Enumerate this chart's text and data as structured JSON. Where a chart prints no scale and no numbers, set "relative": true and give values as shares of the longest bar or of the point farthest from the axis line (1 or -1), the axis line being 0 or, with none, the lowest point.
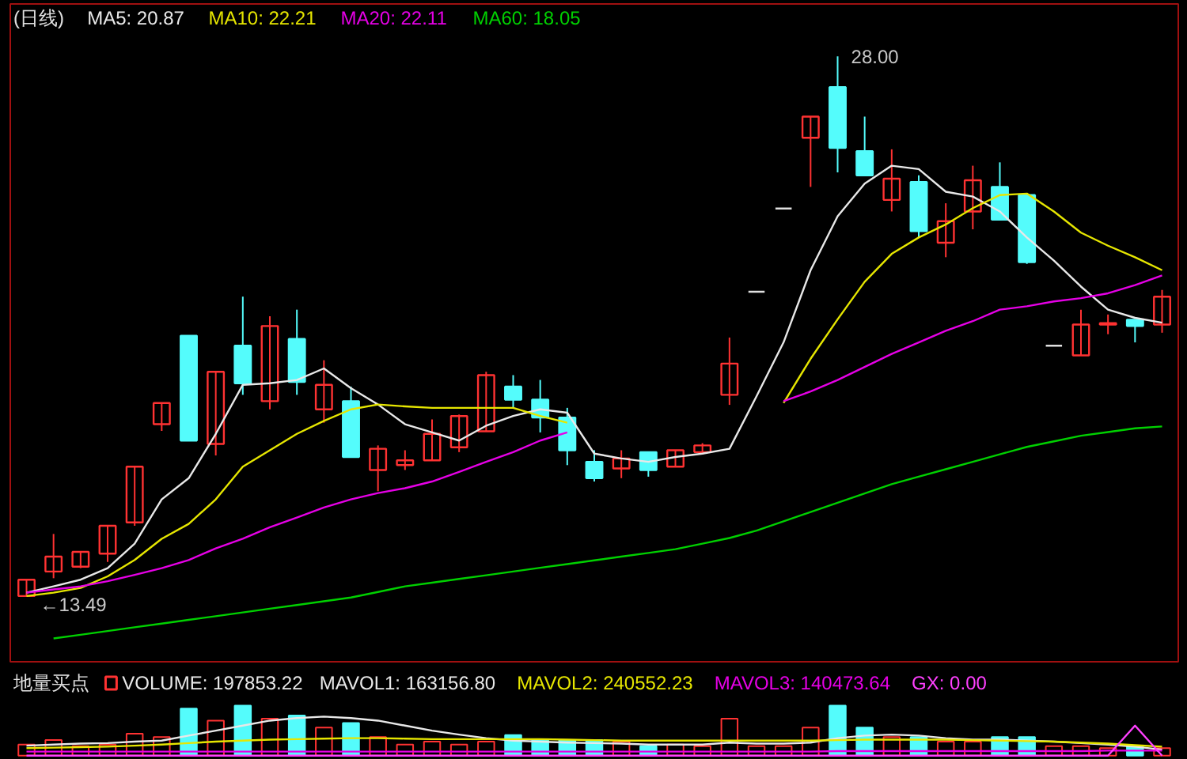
{
  "chart_data": [
    {
      "type": "candlestick",
      "title": "(日线)",
      "tick_labels": false,
      "categories": [
        null,
        null,
        null,
        null,
        null,
        null,
        null,
        null,
        null,
        null,
        null,
        null,
        null,
        null,
        null,
        null,
        null,
        null,
        null,
        null,
        null,
        null,
        null,
        null,
        null,
        null,
        null,
        null,
        null,
        null,
        null,
        null,
        null,
        null,
        null,
        null,
        null,
        null,
        null,
        null,
        null,
        null,
        null
      ],
      "ohlc": [
        [
          13.49,
          13.93,
          13.49,
          13.93
        ],
        [
          14.15,
          15.16,
          13.97,
          14.55
        ],
        [
          14.28,
          14.68,
          14.24,
          14.68
        ],
        [
          14.63,
          15.38,
          14.41,
          15.38
        ],
        [
          15.47,
          16.97,
          15.38,
          16.97
        ],
        [
          18.11,
          18.68,
          17.93,
          18.68
        ],
        [
          20.49,
          20.49,
          17.67,
          17.67
        ],
        [
          17.58,
          19.52,
          17.27,
          19.52
        ],
        [
          20.22,
          21.54,
          18.9,
          19.21
        ],
        [
          18.73,
          21.01,
          18.51,
          20.75
        ],
        [
          20.4,
          21.19,
          18.9,
          19.25
        ],
        [
          18.51,
          19.83,
          18.15,
          19.17
        ],
        [
          18.73,
          19.12,
          17.23,
          17.23
        ],
        [
          16.88,
          17.54,
          16.31,
          17.45
        ],
        [
          17.01,
          17.41,
          16.88,
          17.14
        ],
        [
          17.14,
          18.24,
          17.14,
          17.85
        ],
        [
          17.49,
          18.37,
          17.36,
          18.33
        ],
        [
          17.92,
          19.52,
          17.92,
          19.43
        ],
        [
          19.12,
          19.43,
          18.55,
          18.77
        ],
        [
          18.77,
          19.3,
          17.89,
          18.29
        ],
        [
          18.29,
          18.55,
          17.01,
          17.41
        ],
        [
          17.1,
          17.41,
          16.57,
          16.66
        ],
        [
          16.92,
          17.41,
          16.66,
          17.19
        ],
        [
          17.36,
          17.36,
          16.7,
          16.88
        ],
        [
          16.97,
          17.41,
          16.97,
          17.41
        ],
        [
          17.36,
          17.6,
          17.3,
          17.54
        ],
        [
          18.9,
          20.44,
          18.63,
          19.74
        ],
        [
          21.67,
          21.67,
          21.67,
          21.67
        ],
        [
          23.91,
          23.91,
          23.91,
          23.91
        ],
        [
          25.81,
          26.38,
          24.49,
          26.38
        ],
        [
          27.17,
          28.0,
          24.88,
          25.54
        ],
        [
          25.45,
          26.38,
          24.8,
          24.8
        ],
        [
          24.14,
          25.5,
          23.83,
          24.71
        ],
        [
          24.62,
          24.8,
          23.13,
          23.3
        ],
        [
          22.99,
          24.05,
          22.6,
          23.57
        ],
        [
          23.83,
          25.06,
          23.35,
          24.67
        ],
        [
          24.49,
          25.15,
          23.61,
          23.61
        ],
        [
          24.27,
          24.27,
          22.42,
          22.47
        ],
        [
          20.22,
          20.22,
          20.22,
          20.22
        ],
        [
          19.96,
          21.19,
          19.96,
          20.79
        ],
        [
          20.79,
          21.06,
          20.53,
          20.83
        ],
        [
          20.92,
          20.92,
          20.31,
          20.75
        ],
        [
          20.79,
          21.72,
          20.57,
          21.54
        ]
      ],
      "colors": [
        "#ff3232",
        "#ff3232",
        "#ff3232",
        "#ff3232",
        "#ff3232",
        "#ff3232",
        "#54fcfc",
        "#ff3232",
        "#54fcfc",
        "#ff3232",
        "#54fcfc",
        "#ff3232",
        "#54fcfc",
        "#ff3232",
        "#ff3232",
        "#ff3232",
        "#ff3232",
        "#ff3232",
        "#54fcfc",
        "#54fcfc",
        "#54fcfc",
        "#54fcfc",
        "#ff3232",
        "#54fcfc",
        "#ff3232",
        "#ff3232",
        "#ff3232",
        "#e0e0e0",
        "#e0e0e0",
        "#ff3232",
        "#54fcfc",
        "#54fcfc",
        "#ff3232",
        "#54fcfc",
        "#ff3232",
        "#ff3232",
        "#54fcfc",
        "#54fcfc",
        "#e0e0e0",
        "#ff3232",
        "#ff3232",
        "#54fcfc",
        "#ff3232"
      ],
      "series": [
        {
          "name": "MA5: 20.87",
          "type": "line",
          "color": "#e8e8e8",
          "values": [
            13.58,
            13.75,
            13.93,
            14.24,
            14.9,
            16.09,
            16.66,
            17.85,
            19.17,
            19.21,
            19.3,
            19.61,
            19.08,
            18.64,
            18.11,
            17.89,
            17.67,
            18.07,
            18.33,
            18.51,
            18.42,
            17.32,
            17.19,
            17.1,
            17.23,
            17.32,
            17.45,
            18.86,
            20.31,
            22.25,
            23.7,
            24.58,
            25.06,
            24.97,
            24.36,
            24.23,
            23.83,
            23.13,
            22.51,
            21.81,
            21.19,
            20.97,
            20.84
          ]
        },
        {
          "name": "MA10: 22.21",
          "type": "line",
          "color": "#e6e600",
          "values": [
            13.49,
            13.58,
            13.71,
            14.02,
            14.46,
            15.03,
            15.43,
            16.09,
            16.97,
            17.41,
            17.85,
            18.2,
            18.51,
            18.64,
            18.59,
            18.55,
            18.55,
            18.55,
            18.55,
            18.33,
            18.15,
            null,
            null,
            null,
            null,
            null,
            null,
            null,
            18.68,
            19.87,
            20.93,
            21.94,
            22.69,
            23.13,
            23.48,
            23.92,
            24.27,
            24.31,
            23.83,
            23.26,
            22.91,
            22.6,
            22.25
          ]
        },
        {
          "name": "MA20: 22.11",
          "type": "line",
          "color": "#e600e6",
          "values": [
            13.58,
            13.67,
            13.75,
            13.89,
            14.06,
            14.24,
            14.46,
            14.77,
            15.03,
            15.34,
            15.6,
            15.87,
            16.09,
            16.26,
            16.39,
            16.57,
            16.83,
            17.1,
            17.36,
            17.67,
            17.89,
            null,
            null,
            null,
            null,
            null,
            null,
            null,
            18.73,
            18.99,
            19.3,
            19.65,
            20.0,
            20.31,
            20.62,
            20.88,
            21.19,
            21.28,
            21.41,
            21.5,
            21.63,
            21.85,
            22.11
          ]
        },
        {
          "name": "MA60: 18.05",
          "type": "line",
          "color": "#00d000",
          "values": [
            null,
            12.35,
            12.45,
            12.55,
            12.65,
            12.75,
            12.85,
            12.95,
            13.05,
            13.15,
            13.25,
            13.35,
            13.45,
            13.6,
            13.75,
            13.85,
            13.95,
            14.05,
            14.15,
            14.25,
            14.35,
            14.45,
            14.55,
            14.65,
            14.75,
            14.9,
            15.05,
            15.25,
            15.5,
            15.75,
            16.0,
            16.25,
            16.5,
            16.7,
            16.9,
            17.1,
            17.3,
            17.5,
            17.65,
            17.8,
            17.9,
            18.0,
            18.05
          ]
        }
      ],
      "annotations": [
        "28.00",
        "←13.49"
      ]
    },
    {
      "type": "bar",
      "title": "地量买点",
      "relative": true,
      "tick_labels": false,
      "categories": [
        null,
        null,
        null,
        null,
        null,
        null,
        null,
        null,
        null,
        null,
        null,
        null,
        null,
        null,
        null,
        null,
        null,
        null,
        null,
        null,
        null,
        null,
        null,
        null,
        null,
        null,
        null,
        null,
        null,
        null,
        null,
        null,
        null,
        null,
        null,
        null,
        null,
        null,
        null,
        null,
        null,
        null,
        null
      ],
      "series": [
        {
          "name": "VOLUME: 197853.22",
          "type": "bar",
          "color": "#ff3232",
          "colors": [
            "#ff3232",
            "#ff3232",
            "#ff3232",
            "#ff3232",
            "#ff3232",
            "#ff3232",
            "#54fcfc",
            "#ff3232",
            "#54fcfc",
            "#ff3232",
            "#54fcfc",
            "#ff3232",
            "#54fcfc",
            "#ff3232",
            "#ff3232",
            "#ff3232",
            "#ff3232",
            "#ff3232",
            "#54fcfc",
            "#54fcfc",
            "#54fcfc",
            "#54fcfc",
            "#ff3232",
            "#54fcfc",
            "#ff3232",
            "#ff3232",
            "#ff3232",
            "#ff3232",
            "#ff3232",
            "#ff3232",
            "#54fcfc",
            "#54fcfc",
            "#ff3232",
            "#54fcfc",
            "#ff3232",
            "#ff3232",
            "#54fcfc",
            "#54fcfc",
            "#ff3232",
            "#ff3232",
            "#ff3232",
            "#54fcfc",
            "#ff3232"
          ],
          "values": [
            0.22,
            0.31,
            0.19,
            0.22,
            0.44,
            0.37,
            0.94,
            0.7,
            1,
            0.74,
            0.8,
            0.56,
            0.65,
            0.37,
            0.22,
            0.28,
            0.22,
            0.28,
            0.41,
            0.31,
            0.31,
            0.31,
            0.28,
            0.19,
            0.22,
            0.19,
            0.74,
            0.19,
            0.19,
            0.56,
            1,
            0.56,
            0.37,
            0.37,
            0.28,
            0.28,
            0.37,
            0.37,
            0.19,
            0.19,
            0.15,
            0.19,
            0.15
          ]
        },
        {
          "name": "MAVOL1: 163156.80",
          "type": "line",
          "color": "#e8e8e8",
          "values": [
            0.2,
            0.22,
            0.24,
            0.25,
            0.28,
            0.3,
            0.4,
            0.5,
            0.6,
            0.7,
            0.75,
            0.78,
            0.75,
            0.7,
            0.6,
            0.5,
            0.42,
            0.35,
            0.3,
            0.28,
            0.26,
            0.25,
            0.24,
            0.22,
            0.22,
            0.22,
            0.26,
            0.24,
            0.24,
            0.26,
            0.35,
            0.4,
            0.42,
            0.4,
            0.35,
            0.32,
            0.32,
            0.3,
            0.28,
            0.25,
            0.22,
            0.18,
            0.12
          ]
        },
        {
          "name": "MAVOL2: 240552.23",
          "type": "line",
          "color": "#e6e600",
          "values": [
            0.15,
            0.16,
            0.17,
            0.18,
            0.2,
            0.22,
            0.25,
            0.28,
            0.3,
            0.32,
            0.33,
            0.34,
            0.35,
            0.35,
            0.34,
            0.33,
            0.33,
            0.33,
            0.33,
            0.33,
            0.32,
            0.31,
            0.3,
            0.3,
            0.3,
            0.3,
            0.3,
            0.3,
            0.3,
            0.3,
            0.31,
            0.32,
            0.32,
            0.32,
            0.32,
            0.31,
            0.3,
            0.29,
            0.28,
            0.26,
            0.24,
            0.21,
            0.18
          ]
        },
        {
          "name": "MAVOL3: 140473.64",
          "type": "line",
          "color": "#e600e6",
          "values": [
            0.08,
            0.08,
            0.08,
            0.08,
            0.08,
            0.08,
            0.08,
            0.08,
            0.08,
            0.08,
            0.08,
            0.08,
            0.08,
            0.08,
            0.08,
            0.08,
            0.08,
            0.08,
            0.08,
            0.08,
            0.08,
            0.08,
            0.08,
            0.08,
            0.08,
            0.08,
            0.08,
            0.08,
            0.08,
            0.08,
            0.09,
            0.09,
            0.09,
            0.09,
            0.09,
            0.09,
            0.09,
            0.09,
            0.09,
            0.09,
            0.1,
            0.1,
            0.1
          ]
        },
        {
          "name": "GX: 0.00",
          "type": "line",
          "color": "#ff40ff",
          "values": [
            0,
            0,
            0,
            0,
            0,
            0,
            0,
            0,
            0,
            0,
            0,
            0,
            0,
            0,
            0,
            0,
            0,
            0,
            0,
            0,
            0,
            0,
            0,
            0,
            0,
            0,
            0,
            0,
            0,
            0,
            0,
            0,
            0,
            0,
            0,
            0,
            0,
            0,
            0,
            0,
            0,
            0.6,
            0
          ]
        }
      ]
    }
  ]
}
